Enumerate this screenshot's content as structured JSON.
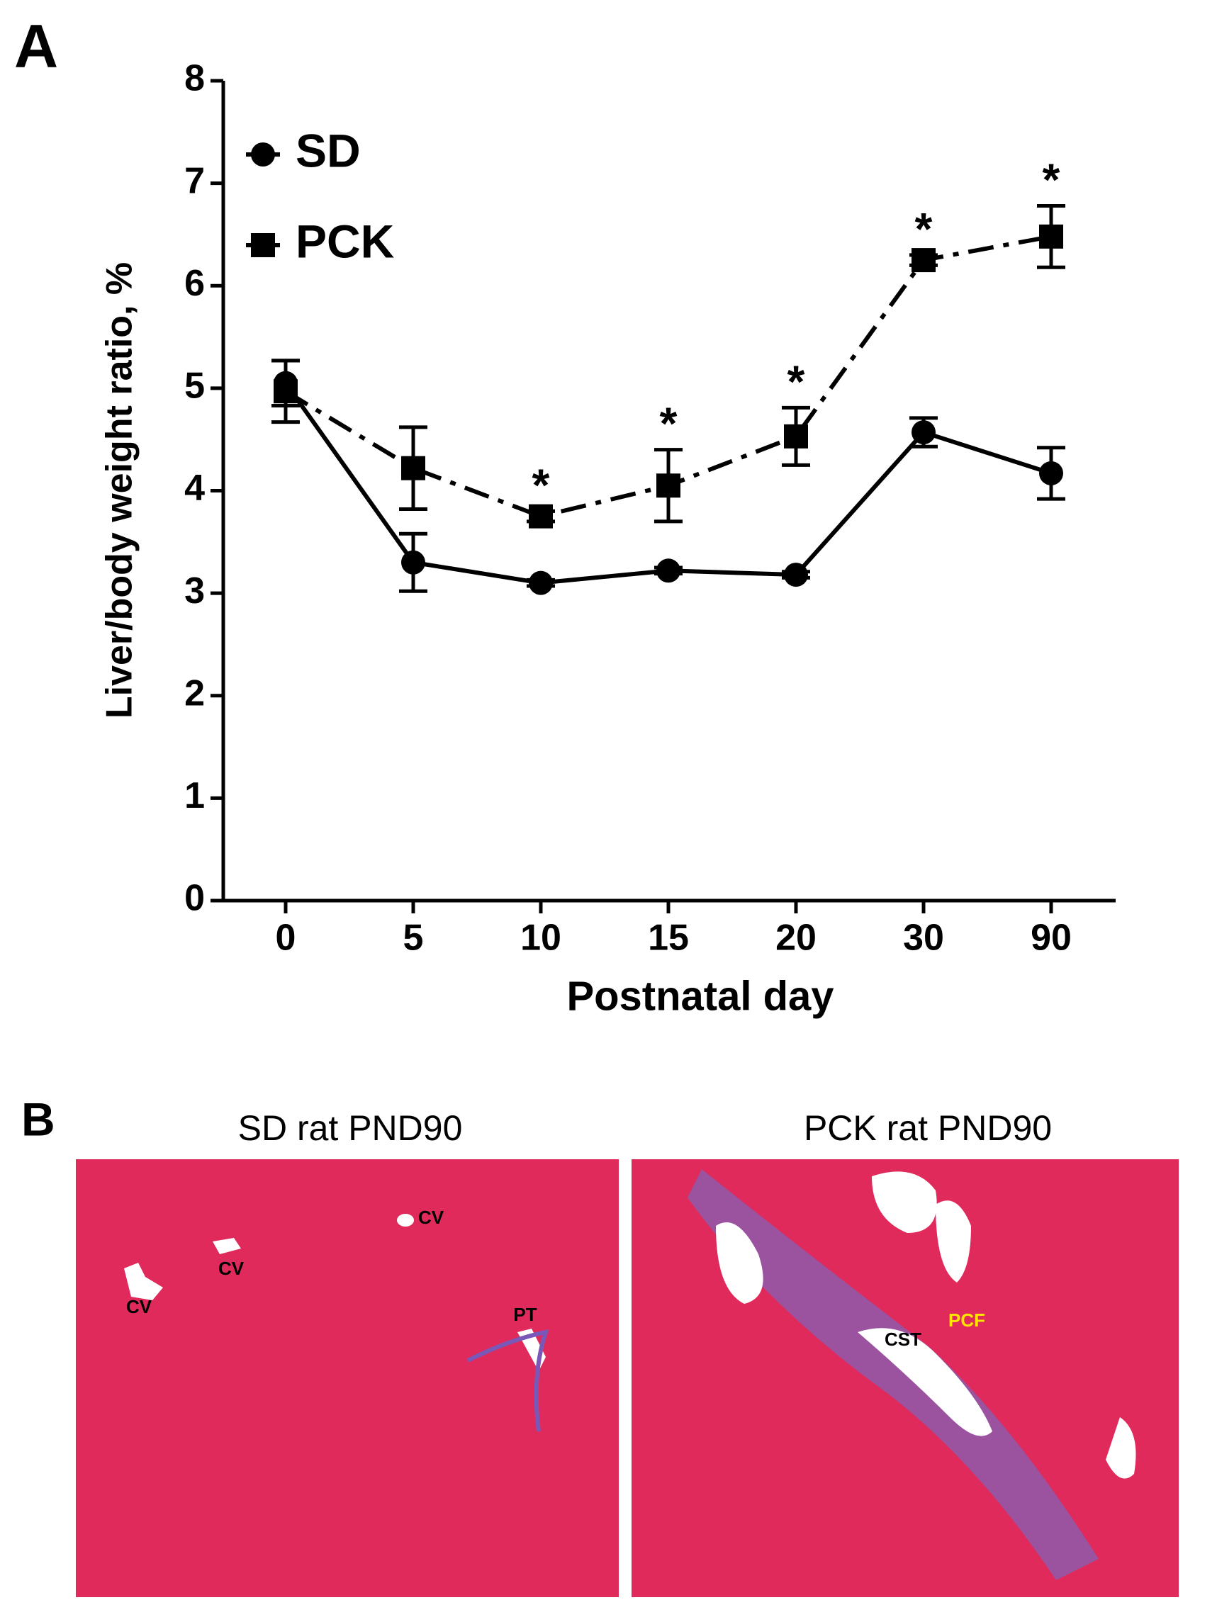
{
  "chart_data": {
    "type": "line",
    "panel_label": "A",
    "x_label": "Postnatal day",
    "y_label": "Liver/body weight ratio, %",
    "categories": [
      "0",
      "5",
      "10",
      "15",
      "20",
      "30",
      "90"
    ],
    "series": [
      {
        "name": "SD",
        "color": "#000000",
        "marker": "circle",
        "linestyle": "solid",
        "values": [
          5.05,
          3.3,
          3.1,
          3.22,
          3.18,
          4.57,
          4.17
        ],
        "errors": [
          0.22,
          0.28,
          0.03,
          0.03,
          0.03,
          0.14,
          0.25
        ]
      },
      {
        "name": "PCK",
        "color": "#000000",
        "marker": "square",
        "linestyle": "dashdot",
        "values": [
          4.97,
          4.22,
          3.75,
          4.05,
          4.53,
          6.25,
          6.48
        ],
        "errors": [
          0.3,
          0.4,
          0.05,
          0.35,
          0.28,
          0.05,
          0.3
        ]
      }
    ],
    "annotations": [
      {
        "text": "*",
        "x": "10"
      },
      {
        "text": "*",
        "x": "15"
      },
      {
        "text": "*",
        "x": "20"
      },
      {
        "text": "*",
        "x": "30"
      },
      {
        "text": "*",
        "x": "90"
      }
    ],
    "ylim": [
      0,
      8
    ],
    "yticks": [
      0,
      1,
      2,
      3,
      4,
      5,
      6,
      7,
      8
    ],
    "grid": false,
    "legend": "upper left"
  },
  "panel_b": {
    "label": "B",
    "images": [
      {
        "title": "SD rat PND90",
        "labels": [
          "CV",
          "CV",
          "CV",
          "PT"
        ]
      },
      {
        "title": "PCK rat PND90",
        "labels": [
          "CST",
          "PCF"
        ]
      }
    ]
  }
}
